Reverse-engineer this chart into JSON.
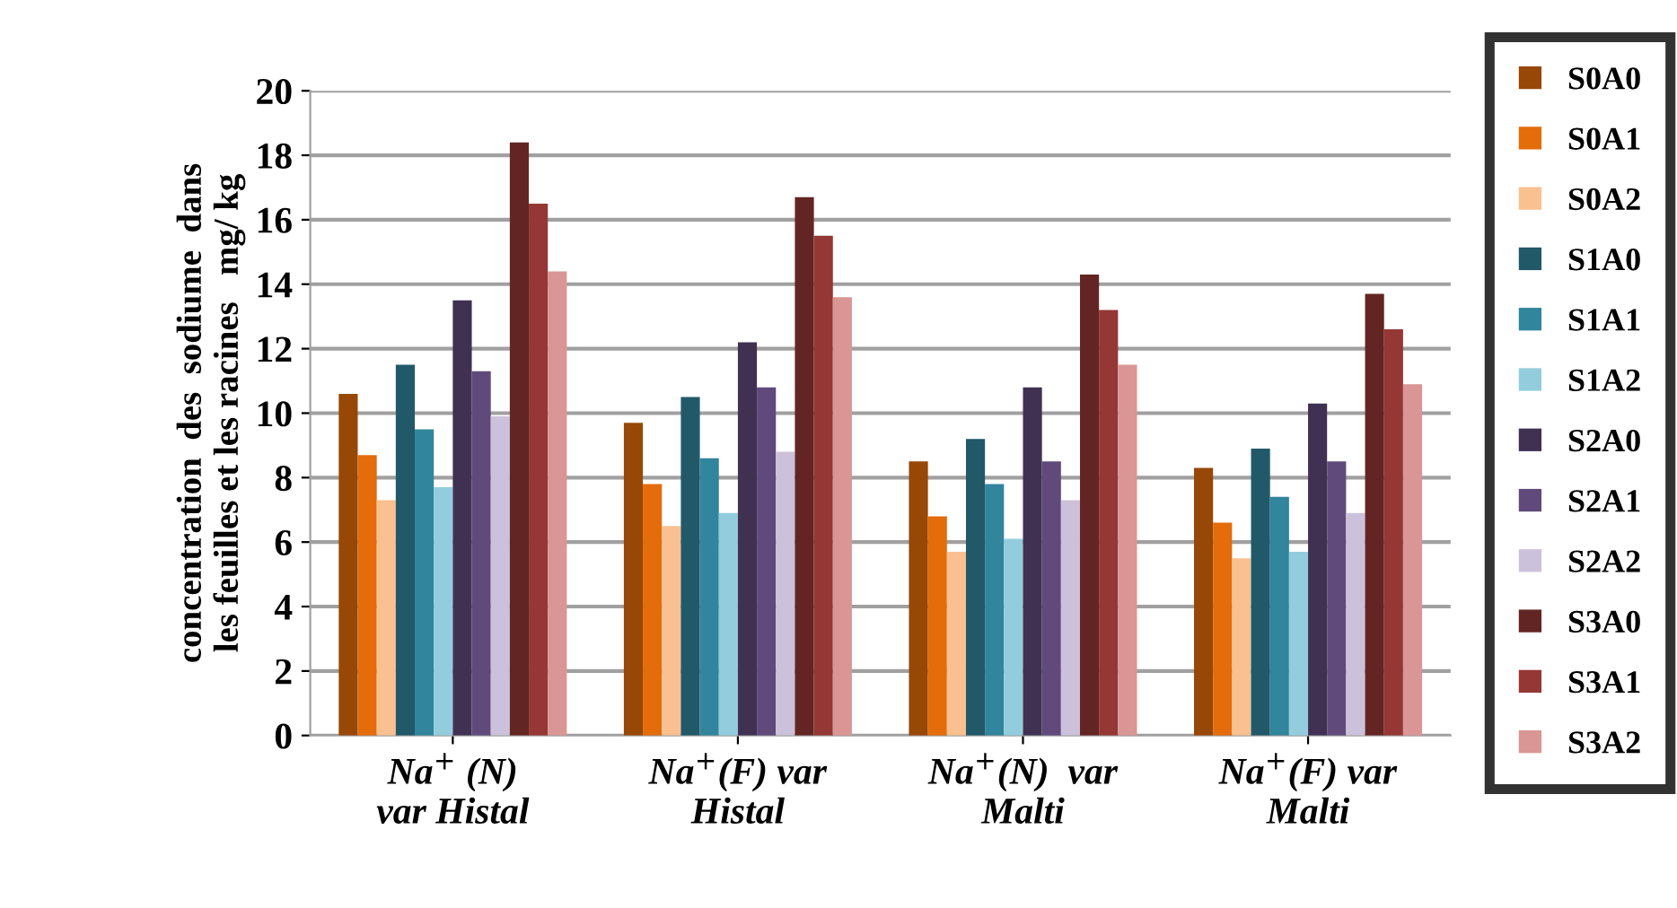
{
  "chart_data": {
    "type": "bar",
    "ylabel": "concentration  des  sodiume  dans\nles feuilles et les racines   mg/ kg",
    "categories": [
      "Na$^{+}$ (N)\nvar Histal",
      "Na$^{+}$(F) var\nHistal",
      "Na$^{+}$(N)  var\nMalti",
      "Na$^{+}$(F) var\nMalti"
    ],
    "series": [
      {
        "name": "S0A0",
        "color": "#974706",
        "values": [
          10.6,
          9.7,
          8.5,
          8.3
        ]
      },
      {
        "name": "S0A1",
        "color": "#e46c0a",
        "values": [
          8.7,
          7.8,
          6.8,
          6.6
        ]
      },
      {
        "name": "S0A2",
        "color": "#fac090",
        "values": [
          7.3,
          6.5,
          5.7,
          5.5
        ]
      },
      {
        "name": "S1A0",
        "color": "#215968",
        "values": [
          11.5,
          10.5,
          9.2,
          8.9
        ]
      },
      {
        "name": "S1A1",
        "color": "#31859c",
        "values": [
          9.5,
          8.6,
          7.8,
          7.4
        ]
      },
      {
        "name": "S1A2",
        "color": "#93cddd",
        "values": [
          7.7,
          6.9,
          6.1,
          5.7
        ]
      },
      {
        "name": "S2A0",
        "color": "#403152",
        "values": [
          13.5,
          12.2,
          10.8,
          10.3
        ]
      },
      {
        "name": "S2A1",
        "color": "#604a7b",
        "values": [
          11.3,
          10.8,
          8.5,
          8.5
        ]
      },
      {
        "name": "S2A2",
        "color": "#ccc1da",
        "values": [
          9.9,
          8.8,
          7.3,
          6.9
        ]
      },
      {
        "name": "S3A0",
        "color": "#632523",
        "values": [
          18.4,
          16.7,
          14.3,
          13.7
        ]
      },
      {
        "name": "S3A1",
        "color": "#953735",
        "values": [
          16.5,
          15.5,
          13.2,
          12.6
        ]
      },
      {
        "name": "S3A2",
        "color": "#d99694",
        "values": [
          14.4,
          13.6,
          11.5,
          10.9
        ]
      }
    ],
    "ylim": [
      0,
      20
    ],
    "yticks": [
      0,
      2,
      4,
      6,
      8,
      10,
      12,
      14,
      16,
      18,
      20
    ],
    "grid": "y",
    "legend": "right"
  }
}
